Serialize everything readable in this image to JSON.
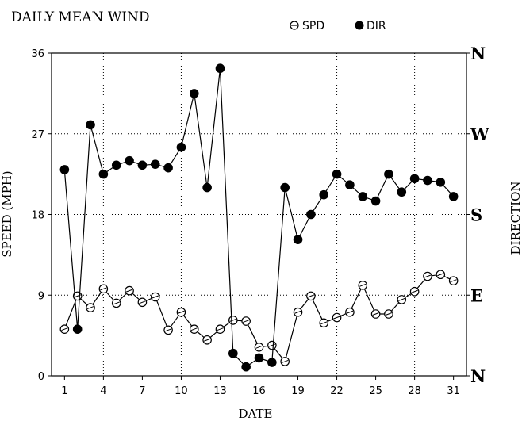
{
  "chart_data": {
    "type": "line",
    "title": "DAILY MEAN WIND",
    "xlabel": "DATE",
    "ylabel": "SPEED (MPH)",
    "y2label": "DIRECTION",
    "x_ticks": [
      "1",
      "4",
      "7",
      "10",
      "13",
      "16",
      "19",
      "22",
      "25",
      "28",
      "31"
    ],
    "y_ticks": [
      "0",
      "9",
      "18",
      "27",
      "36"
    ],
    "y2_ticks": [
      "N",
      "E",
      "S",
      "W",
      "N"
    ],
    "xlim": [
      0,
      32
    ],
    "ylim": [
      0,
      36
    ],
    "y2lim": [
      0,
      360
    ],
    "grid": true,
    "legend": {
      "placement": "top",
      "entries": [
        "SPD",
        "DIR"
      ]
    },
    "series": [
      {
        "name": "SPD",
        "axis": "left",
        "marker": "open-circle",
        "x": [
          1,
          2,
          3,
          4,
          5,
          6,
          7,
          8,
          9,
          10,
          11,
          12,
          13,
          14,
          15,
          16,
          17,
          18,
          19,
          20,
          21,
          22,
          23,
          24,
          25,
          26,
          27,
          28,
          29,
          30,
          31
        ],
        "values": [
          5.2,
          8.9,
          7.6,
          9.7,
          8.1,
          9.5,
          8.2,
          8.8,
          5.1,
          7.1,
          5.2,
          4.0,
          5.2,
          6.2,
          6.1,
          3.2,
          3.4,
          1.6,
          7.1,
          8.9,
          5.9,
          6.5,
          7.1,
          10.1,
          6.9,
          6.9,
          8.5,
          9.4,
          11.1,
          11.3,
          10.6
        ]
      },
      {
        "name": "DIR",
        "axis": "right",
        "marker": "filled-circle",
        "x": [
          1,
          2,
          3,
          4,
          5,
          6,
          7,
          8,
          9,
          10,
          11,
          12,
          13,
          14,
          15,
          16,
          17,
          18,
          19,
          20,
          21,
          22,
          23,
          24,
          25,
          26,
          27,
          28,
          29,
          30,
          31
        ],
        "values": [
          230,
          52,
          280,
          225,
          235,
          240,
          235,
          236,
          232,
          255,
          315,
          210,
          343,
          25,
          10,
          20,
          15,
          210,
          152,
          180,
          202,
          225,
          213,
          200,
          195,
          225,
          205,
          220,
          218,
          216,
          200
        ]
      }
    ]
  }
}
